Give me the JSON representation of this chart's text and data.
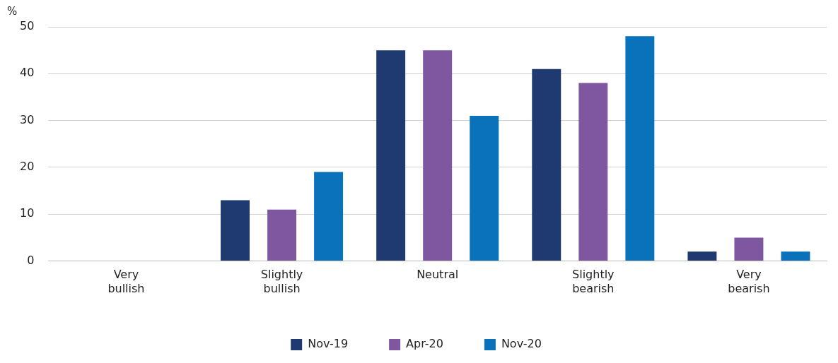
{
  "chart_data": {
    "type": "bar",
    "ylabel": "%",
    "categories": [
      "Very bullish",
      "Slightly bullish",
      "Neutral",
      "Slightly bearish",
      "Very bearish"
    ],
    "series": [
      {
        "name": "Nov-19",
        "color": "#1f3a70",
        "values": [
          0,
          13,
          45,
          41,
          2
        ]
      },
      {
        "name": "Apr-20",
        "color": "#7e57a0",
        "values": [
          0,
          11,
          45,
          38,
          5
        ]
      },
      {
        "name": "Nov-20",
        "color": "#0a72ba",
        "values": [
          0,
          19,
          31,
          48,
          2
        ]
      }
    ],
    "ylim": [
      0,
      50
    ],
    "yticks": [
      0,
      10,
      20,
      30,
      40,
      50
    ],
    "grid": "y",
    "legend": "bottom"
  }
}
